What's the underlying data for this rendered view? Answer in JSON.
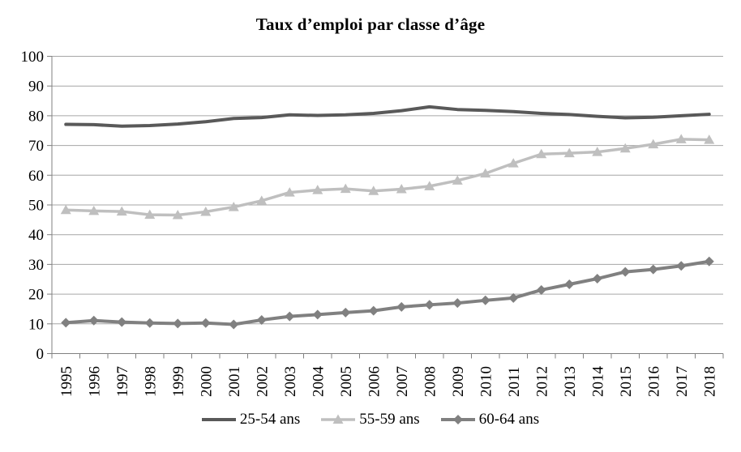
{
  "chart_data": {
    "type": "line",
    "title": "Taux d’emploi par classe d’âge",
    "x": [
      "1995",
      "1996",
      "1997",
      "1998",
      "1999",
      "2000",
      "2001",
      "2002",
      "2003",
      "2004",
      "2005",
      "2006",
      "2007",
      "2008",
      "2009",
      "2010",
      "2011",
      "2012",
      "2013",
      "2014",
      "2015",
      "2016",
      "2017",
      "2018"
    ],
    "series": [
      {
        "name": "25-54 ans",
        "color": "#595959",
        "marker": "none",
        "line_width": 4,
        "values": [
          77.1,
          77.0,
          76.5,
          76.7,
          77.2,
          78.0,
          79.1,
          79.4,
          80.3,
          80.1,
          80.3,
          80.8,
          81.7,
          83.0,
          82.1,
          81.8,
          81.4,
          80.8,
          80.4,
          79.8,
          79.3,
          79.5,
          80.0,
          80.5
        ]
      },
      {
        "name": "55-59 ans",
        "color": "#bfbfbf",
        "marker": "triangle",
        "line_width": 3.5,
        "values": [
          48.3,
          48.0,
          47.8,
          46.7,
          46.6,
          47.7,
          49.3,
          51.4,
          54.2,
          55.0,
          55.4,
          54.7,
          55.3,
          56.3,
          58.2,
          60.6,
          64.0,
          67.1,
          67.4,
          67.8,
          69.0,
          70.4,
          72.1,
          71.9
        ]
      },
      {
        "name": "60-64 ans",
        "color": "#808080",
        "marker": "diamond",
        "line_width": 4,
        "values": [
          10.4,
          11.1,
          10.6,
          10.3,
          10.1,
          10.3,
          9.8,
          11.3,
          12.5,
          13.1,
          13.8,
          14.4,
          15.7,
          16.4,
          17.0,
          17.9,
          18.7,
          21.4,
          23.3,
          25.2,
          27.5,
          28.3,
          29.5,
          31.0
        ]
      }
    ],
    "ylim": [
      0,
      100
    ],
    "y_ticks": [
      0,
      10,
      20,
      30,
      40,
      50,
      60,
      70,
      80,
      90,
      100
    ],
    "xlabel": "",
    "ylabel": "",
    "grid": "horizontal",
    "legend_position": "bottom",
    "grid_color": "#a6a6a6",
    "axis_color": "#808080",
    "text_color": "#000000"
  }
}
